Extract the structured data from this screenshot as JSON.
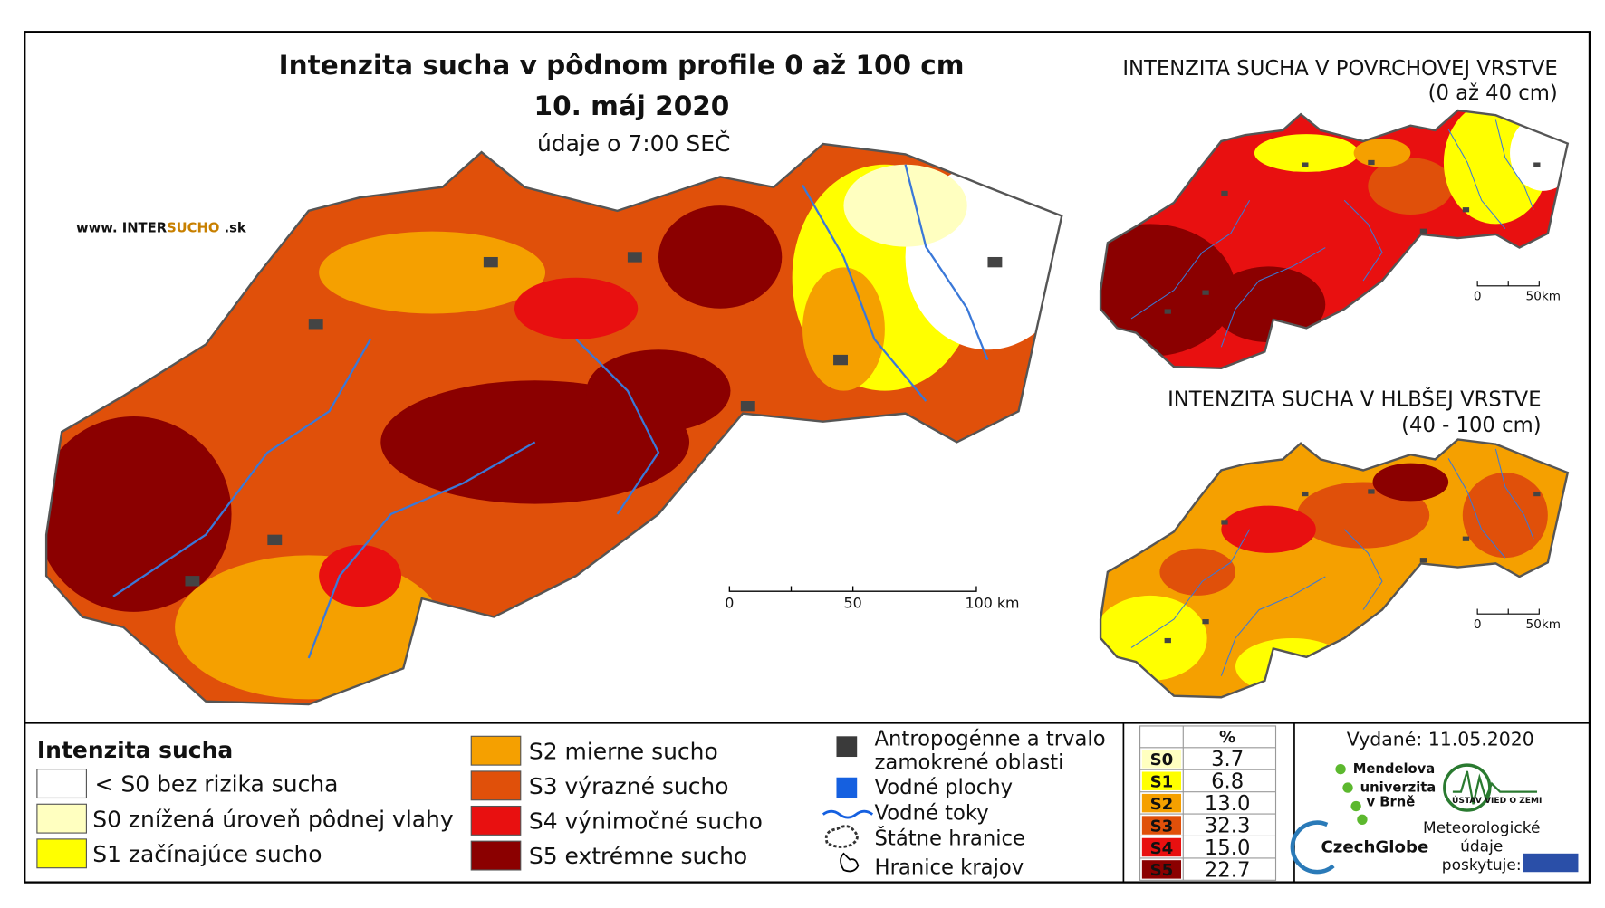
{
  "title": "Intenzita sucha v pôdnom profile 0 až 100 cm",
  "date": "10. máj 2020",
  "time_note": "údaje o 7:00 SEČ",
  "website": {
    "prefix": "www. INTER",
    "highlight": "SUCHO",
    "suffix": " .sk"
  },
  "main_scale": [
    "0",
    "50",
    "100 km"
  ],
  "insets": [
    {
      "title": "INTENZITA SUCHA V POVRCHOVEJ VRSTVE",
      "subtitle": "(0 až 40 cm)",
      "scale": [
        "0",
        "50km"
      ]
    },
    {
      "title": "INTENZITA SUCHA V HLBŠEJ VRSTVE",
      "subtitle": "(40 - 100 cm)",
      "scale": [
        "0",
        "50km"
      ]
    }
  ],
  "legend": {
    "title": "Intenzita sucha",
    "classes": [
      "< S0 bez rizika sucha",
      "S0 znížená úroveň pôdnej vlahy",
      "S1 začínajúce sucho",
      "S2 mierne sucho",
      "S3 výrazné sucho",
      "S4 výnimočné sucho",
      "S5 extrémne sucho"
    ]
  },
  "other_legend": [
    [
      "Antropogénne a trvalo",
      "zamokrené oblasti"
    ],
    [
      "Vodné plochy"
    ],
    [
      "Vodné toky"
    ],
    [
      "Štátne hranice"
    ],
    [
      "Hranice krajov"
    ]
  ],
  "table": {
    "header": "%",
    "rows": [
      [
        "S0",
        "3.7"
      ],
      [
        "S1",
        "6.8"
      ],
      [
        "S2",
        "13.0"
      ],
      [
        "S3",
        "32.3"
      ],
      [
        "S4",
        "15.0"
      ],
      [
        "S5",
        "22.7"
      ]
    ]
  },
  "issued": "Vydané: 11.05.2020",
  "logos": {
    "mendel": [
      "Mendelova",
      "univerzita",
      "v Brně"
    ],
    "czechglobe": "CzechGlobe",
    "uvz": "ÚSTAV VIED O ZEMI",
    "provider": [
      "Meteorologické",
      "údaje",
      "poskytuje:"
    ]
  }
}
